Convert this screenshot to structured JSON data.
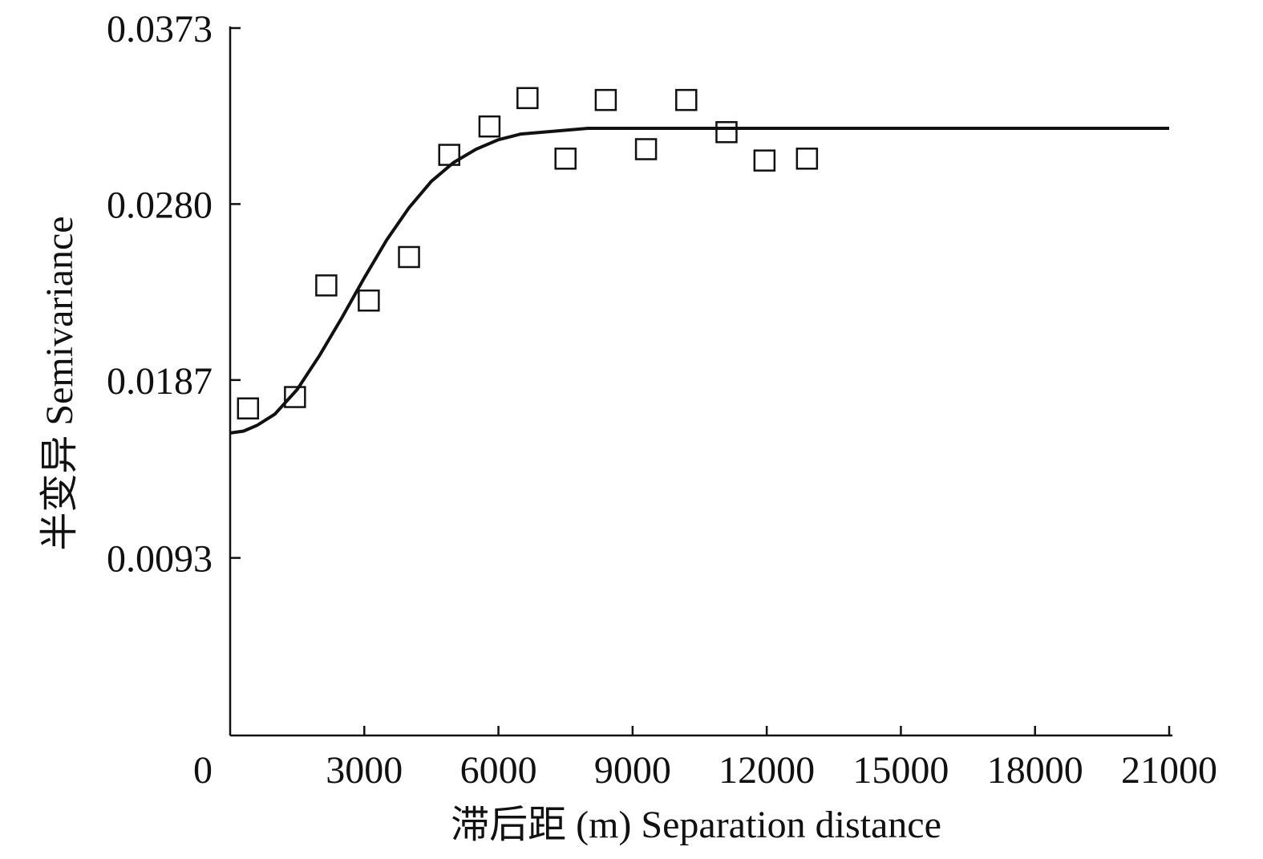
{
  "chart_data": {
    "type": "scatter",
    "title": "",
    "xlabel": "滞后距 (m) Separation distance",
    "ylabel": "半变异 Semivariance",
    "xlim": [
      0,
      21000
    ],
    "ylim": [
      0,
      0.0373
    ],
    "x_ticks": [
      0,
      3000,
      6000,
      9000,
      12000,
      15000,
      18000,
      21000
    ],
    "x_tick_labels": [
      "0",
      "3000",
      "6000",
      "9000",
      "12000",
      "15000",
      "18000",
      "21000"
    ],
    "y_ticks": [
      0.0093,
      0.0187,
      0.028,
      0.0373
    ],
    "y_tick_labels": [
      "0.0093",
      "0.0187",
      "0.0280",
      "0.0373"
    ],
    "grid": false,
    "legend": "none",
    "series": [
      {
        "kind": "points",
        "marker": "open-square",
        "x": [
          400,
          1450,
          2150,
          3100,
          4000,
          4900,
          5800,
          6650,
          7500,
          8400,
          9300,
          10200,
          11100,
          11950,
          12900
        ],
        "y": [
          0.0172,
          0.0178,
          0.0237,
          0.0229,
          0.0252,
          0.0306,
          0.0321,
          0.0336,
          0.0304,
          0.0335,
          0.0309,
          0.0335,
          0.0318,
          0.0303,
          0.0304
        ]
      },
      {
        "kind": "line",
        "model": "fitted",
        "x": [
          0,
          300,
          600,
          1000,
          1500,
          2000,
          2500,
          3000,
          3500,
          4000,
          4500,
          5000,
          5500,
          6000,
          6500,
          7000,
          7500,
          8000,
          9000,
          10000,
          12000,
          15000,
          18000,
          21000
        ],
        "y": [
          0.0159,
          0.016,
          0.0163,
          0.0169,
          0.0182,
          0.02,
          0.022,
          0.0241,
          0.0261,
          0.0278,
          0.0292,
          0.0302,
          0.0309,
          0.0314,
          0.0317,
          0.0318,
          0.0319,
          0.032,
          0.032,
          0.032,
          0.032,
          0.032,
          0.032,
          0.032
        ]
      }
    ]
  }
}
